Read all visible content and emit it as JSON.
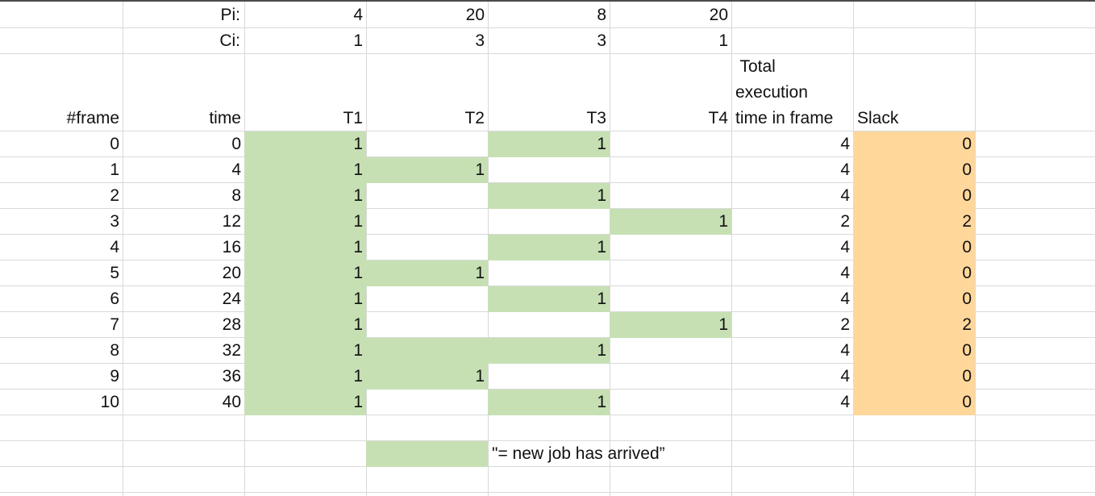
{
  "colors": {
    "new_job": "#c6e0b4",
    "slack": "#ffd79b",
    "gridline": "#d9d9d9"
  },
  "params": {
    "pi_label": "Pi:",
    "ci_label": "Ci:",
    "pi": [
      "4",
      "20",
      "8",
      "20"
    ],
    "ci": [
      "1",
      "3",
      "3",
      "1"
    ]
  },
  "headers": {
    "frame": "#frame",
    "time": "time",
    "t1": "T1",
    "t2": "T2",
    "t3": "T3",
    "t4": "T4",
    "total_line1": " Total",
    "total_line2": "execution",
    "total_line3": "time in frame",
    "slack": "Slack"
  },
  "rows": [
    {
      "frame": "0",
      "time": "0",
      "t1": "1",
      "t2": "",
      "t3": "1",
      "t4": "",
      "total": "4",
      "slack": "0",
      "new": [
        true,
        false,
        true,
        false
      ]
    },
    {
      "frame": "1",
      "time": "4",
      "t1": "1",
      "t2": "1",
      "t3": "",
      "t4": "",
      "total": "4",
      "slack": "0",
      "new": [
        true,
        true,
        false,
        false
      ]
    },
    {
      "frame": "2",
      "time": "8",
      "t1": "1",
      "t2": "",
      "t3": "1",
      "t4": "",
      "total": "4",
      "slack": "0",
      "new": [
        true,
        false,
        true,
        false
      ]
    },
    {
      "frame": "3",
      "time": "12",
      "t1": "1",
      "t2": "",
      "t3": "",
      "t4": "1",
      "total": "2",
      "slack": "2",
      "new": [
        true,
        false,
        false,
        true
      ]
    },
    {
      "frame": "4",
      "time": "16",
      "t1": "1",
      "t2": "",
      "t3": "1",
      "t4": "",
      "total": "4",
      "slack": "0",
      "new": [
        true,
        false,
        true,
        false
      ]
    },
    {
      "frame": "5",
      "time": "20",
      "t1": "1",
      "t2": "1",
      "t3": "",
      "t4": "",
      "total": "4",
      "slack": "0",
      "new": [
        true,
        true,
        false,
        false
      ]
    },
    {
      "frame": "6",
      "time": "24",
      "t1": "1",
      "t2": "",
      "t3": "1",
      "t4": "",
      "total": "4",
      "slack": "0",
      "new": [
        true,
        false,
        true,
        false
      ]
    },
    {
      "frame": "7",
      "time": "28",
      "t1": "1",
      "t2": "",
      "t3": "",
      "t4": "1",
      "total": "2",
      "slack": "2",
      "new": [
        true,
        false,
        false,
        true
      ]
    },
    {
      "frame": "8",
      "time": "32",
      "t1": "1",
      "t2": "",
      "t3": "1",
      "t4": "",
      "total": "4",
      "slack": "0",
      "new": [
        true,
        true,
        true,
        false
      ]
    },
    {
      "frame": "9",
      "time": "36",
      "t1": "1",
      "t2": "1",
      "t3": "",
      "t4": "",
      "total": "4",
      "slack": "0",
      "new": [
        true,
        true,
        false,
        false
      ]
    },
    {
      "frame": "10",
      "time": "40",
      "t1": "1",
      "t2": "",
      "t3": "1",
      "t4": "",
      "total": "4",
      "slack": "0",
      "new": [
        true,
        false,
        true,
        false
      ]
    }
  ],
  "legend": {
    "text": "\"= new job has arrived”"
  }
}
